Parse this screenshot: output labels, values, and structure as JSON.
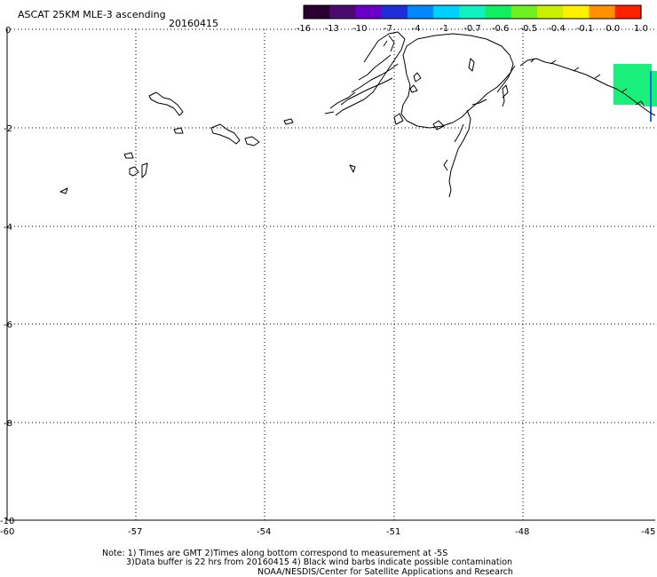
{
  "title": {
    "line1": "ASCAT 25KM MLE-3 ascending",
    "date": "20160415"
  },
  "colorbar": {
    "labels": [
      "-16",
      "-13",
      "-10",
      "-7",
      "-4",
      "-1",
      "-0.7",
      "-0.6",
      "-0.5",
      "-0.4",
      "-0.1",
      "0.0",
      "1.0"
    ],
    "colors": [
      "#2a0030",
      "#4b0a6e",
      "#6a00c8",
      "#1f2ed8",
      "#0088ff",
      "#00d0ff",
      "#10f0c0",
      "#10ef60",
      "#70f020",
      "#c8f000",
      "#fff000",
      "#ff9000",
      "#ff2000"
    ]
  },
  "axes": {
    "x_ticks": [
      "-60",
      "-57",
      "-54",
      "-51",
      "-48",
      "-45"
    ],
    "y_ticks": [
      "0",
      "-2",
      "-4",
      "-6",
      "-8",
      "-10"
    ]
  },
  "notes": {
    "line1": "Note: 1) Times are GMT 2)Times along bottom correspond to measurement at -5S",
    "line2": "3)Data buffer is 22 hrs from 20160415 4) Black wind barbs indicate possible contamination",
    "line3": "NOAA/NESDIS/Center for Satellite Applications and Research"
  },
  "data_swath": {
    "color": "#19f07c",
    "edge_color": "#1a6cd8"
  }
}
